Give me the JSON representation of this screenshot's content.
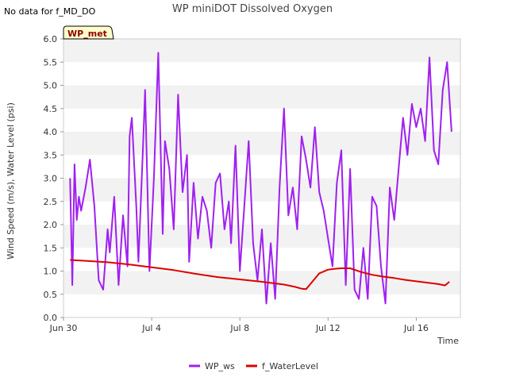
{
  "note": "No data for f_MD_DO",
  "colors": {
    "ws": "#a020f0",
    "water": "#dd0000",
    "band": "#f2f2f2",
    "badge_bg": "#ffffcc"
  },
  "chart_data": {
    "type": "line",
    "title": "WP miniDOT Dissolved Oxygen",
    "xlabel": "Time",
    "ylabel": "Wind Speed (m/s), Water Level (psi)",
    "badge": "WP_met",
    "xlim": [
      0,
      18.0
    ],
    "ylim": [
      0,
      6.0
    ],
    "yticks": [
      "0.0",
      "0.5",
      "1.0",
      "1.5",
      "2.0",
      "2.5",
      "3.0",
      "3.5",
      "4.0",
      "4.5",
      "5.0",
      "5.5",
      "6.0"
    ],
    "xticks": [
      {
        "x": 0,
        "label": "Jun 30"
      },
      {
        "x": 4,
        "label": "Jul 4"
      },
      {
        "x": 8,
        "label": "Jul 8"
      },
      {
        "x": 12,
        "label": "Jul 12"
      },
      {
        "x": 16,
        "label": "Jul 16"
      }
    ],
    "grid": "horizontal bands",
    "legend_position": "bottom",
    "series": [
      {
        "name": "WP_ws",
        "x": [
          0.3,
          0.4,
          0.5,
          0.6,
          0.7,
          0.8,
          1.0,
          1.2,
          1.4,
          1.6,
          1.8,
          2.0,
          2.1,
          2.3,
          2.5,
          2.7,
          2.9,
          3.0,
          3.1,
          3.3,
          3.4,
          3.6,
          3.7,
          3.9,
          4.1,
          4.3,
          4.5,
          4.6,
          4.8,
          5.0,
          5.2,
          5.4,
          5.6,
          5.7,
          5.9,
          6.1,
          6.3,
          6.5,
          6.7,
          6.9,
          7.1,
          7.3,
          7.5,
          7.6,
          7.8,
          8.0,
          8.2,
          8.4,
          8.6,
          8.8,
          9.0,
          9.2,
          9.4,
          9.6,
          9.8,
          10.0,
          10.2,
          10.4,
          10.6,
          10.8,
          11.0,
          11.2,
          11.4,
          11.6,
          11.8,
          12.0,
          12.2,
          12.4,
          12.6,
          12.8,
          13.0,
          13.2,
          13.4,
          13.6,
          13.8,
          14.0,
          14.2,
          14.4,
          14.6,
          14.8,
          15.0,
          15.2,
          15.4,
          15.6,
          15.8,
          16.0,
          16.2,
          16.4,
          16.6,
          16.8,
          17.0,
          17.2,
          17.4,
          17.6
        ],
        "y": [
          3.0,
          0.7,
          3.3,
          2.1,
          2.6,
          2.3,
          2.8,
          3.4,
          2.4,
          0.8,
          0.6,
          1.9,
          1.4,
          2.6,
          0.7,
          2.2,
          1.1,
          3.9,
          4.3,
          2.4,
          1.2,
          3.6,
          4.9,
          1.0,
          3.0,
          5.7,
          1.8,
          3.8,
          3.2,
          1.9,
          4.8,
          2.7,
          3.5,
          1.2,
          2.9,
          1.7,
          2.6,
          2.3,
          1.5,
          2.9,
          3.1,
          1.9,
          2.5,
          1.6,
          3.7,
          1.0,
          2.4,
          3.8,
          1.6,
          0.8,
          1.9,
          0.3,
          1.6,
          0.4,
          2.8,
          4.5,
          2.2,
          2.8,
          1.9,
          3.9,
          3.4,
          2.8,
          4.1,
          2.7,
          2.3,
          1.7,
          1.1,
          2.9,
          3.6,
          0.7,
          3.2,
          0.6,
          0.4,
          1.5,
          0.4,
          2.6,
          2.4,
          1.1,
          0.3,
          2.8,
          2.1,
          3.2,
          4.3,
          3.5,
          4.6,
          4.1,
          4.5,
          3.8,
          5.6,
          3.6,
          3.3,
          4.9,
          5.5,
          4.0
        ]
      },
      {
        "name": "f_WaterLevel",
        "x": [
          0.3,
          1.0,
          2.0,
          3.0,
          4.0,
          5.0,
          6.0,
          7.0,
          8.0,
          9.0,
          10.0,
          10.5,
          10.8,
          11.0,
          11.3,
          11.6,
          12.0,
          12.3,
          12.6,
          13.0,
          13.5,
          14.0,
          14.5,
          15.0,
          15.5,
          16.0,
          16.5,
          17.0,
          17.3,
          17.5
        ],
        "y": [
          1.24,
          1.22,
          1.19,
          1.14,
          1.08,
          1.02,
          0.94,
          0.87,
          0.82,
          0.77,
          0.71,
          0.66,
          0.62,
          0.61,
          0.78,
          0.95,
          1.03,
          1.05,
          1.06,
          1.06,
          0.98,
          0.92,
          0.88,
          0.85,
          0.81,
          0.78,
          0.75,
          0.72,
          0.69,
          0.77
        ]
      }
    ]
  }
}
